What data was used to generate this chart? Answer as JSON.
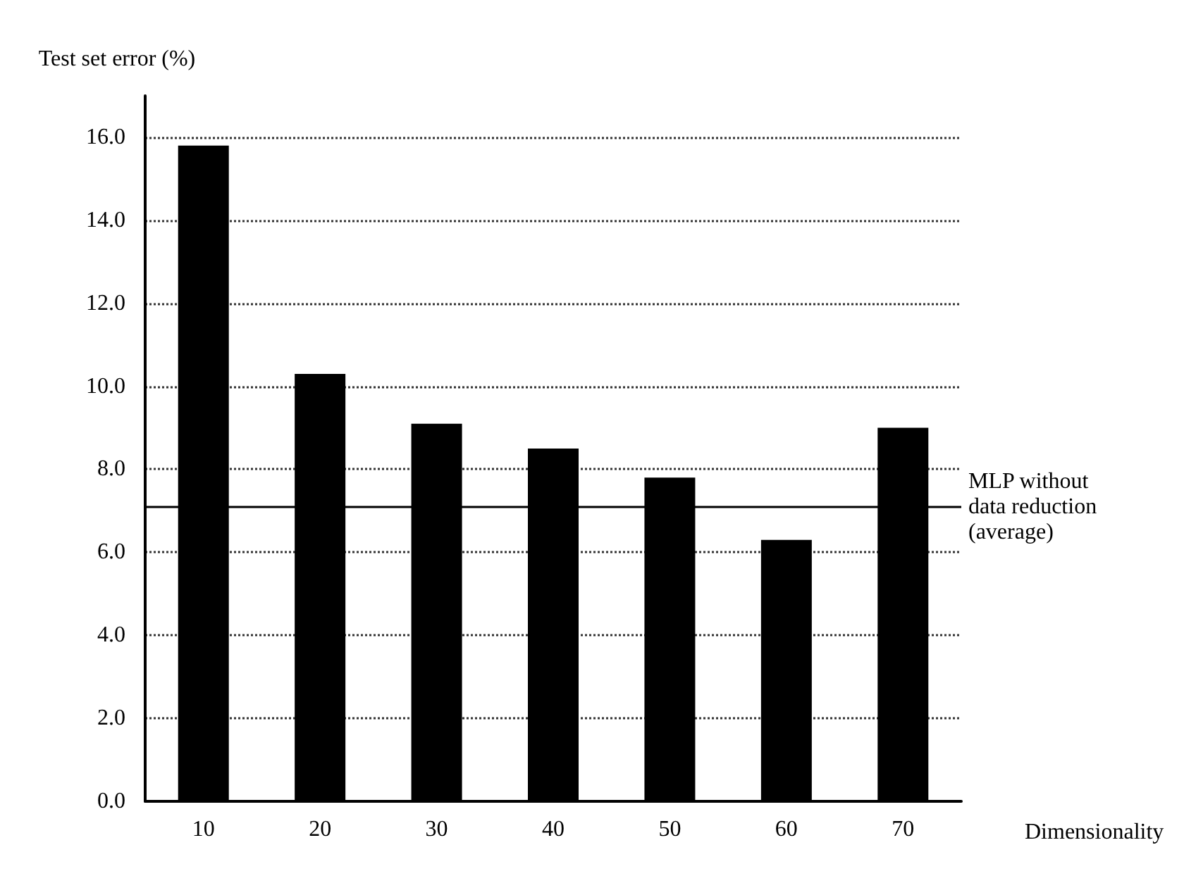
{
  "chart_data": {
    "type": "bar",
    "ylabel": "Test set error (%)",
    "xlabel": "Dimensionality",
    "categories": [
      "10",
      "20",
      "30",
      "40",
      "50",
      "60",
      "70"
    ],
    "values": [
      15.8,
      10.3,
      9.1,
      8.5,
      7.8,
      6.3,
      9.0
    ],
    "color": "#000000",
    "ylim": [
      0,
      17
    ],
    "yticks": [
      {
        "value": 0,
        "label": "0.0"
      },
      {
        "value": 2,
        "label": "2.0"
      },
      {
        "value": 4,
        "label": "4.0"
      },
      {
        "value": 6,
        "label": "6.0"
      },
      {
        "value": 8,
        "label": "8.0"
      },
      {
        "value": 10,
        "label": "10.0"
      },
      {
        "value": 12,
        "label": "12.0"
      },
      {
        "value": 14,
        "label": "14.0"
      },
      {
        "value": 16,
        "label": "16.0"
      }
    ],
    "grid": "y",
    "ref_lines": [
      {
        "axis": "y",
        "value": 7.1,
        "label": "MLP without data reduction (average)",
        "color": "#000000"
      }
    ]
  }
}
